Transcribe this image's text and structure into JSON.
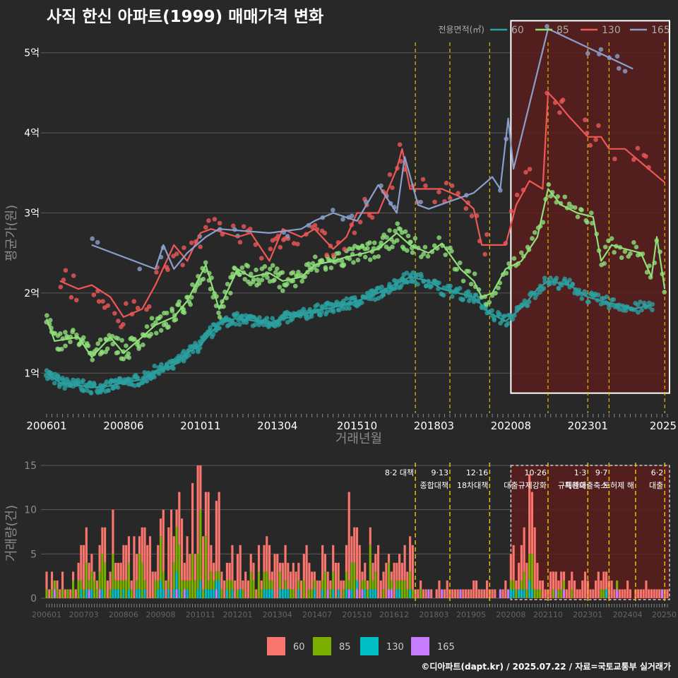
{
  "title": "사직 한신 아파트(1999) 매매가격 변화",
  "footer": "©디아파트(dapt.kr) / 2025.07.22 / 자료=국토교통부 실거래가",
  "colors": {
    "background": "#282828",
    "grid": "#5a5a5a",
    "policy_line": "#e8c000",
    "highlight_fill": "#5a1c1c",
    "series_60": "#2aa0a0",
    "series_85": "#8fe07a",
    "series_130": "#ef5757",
    "series_165": "#8aa0cc",
    "bar_60": "#f8766d",
    "bar_85": "#7cae00",
    "bar_130": "#00bfc4",
    "bar_165": "#c77cff"
  },
  "chart_data": [
    {
      "type": "line",
      "title": "사직 한신 아파트(1999) 매매가격 변화",
      "xlabel": "거래년월",
      "ylabel": "평균가(원)",
      "x_ticks": [
        "200601",
        "200806",
        "201011",
        "201304",
        "201510",
        "201803",
        "202008",
        "202301",
        "2025"
      ],
      "y_ticks": [
        "1억",
        "2억",
        "3억",
        "4억",
        "5억"
      ],
      "y_unit": "억원",
      "ylim": [
        0.5,
        5.5
      ],
      "xlim": [
        "2006-01",
        "2025-07"
      ],
      "legend_title": "전용면적(㎡)",
      "legend_position": "top-right",
      "series": [
        {
          "name": "60",
          "color_key": "series_60",
          "points": [
            [
              "2006-01",
              1.0
            ],
            [
              "2006-06",
              0.88
            ],
            [
              "2007-01",
              0.85
            ],
            [
              "2007-06",
              0.82
            ],
            [
              "2008-01",
              0.84
            ],
            [
              "2008-06",
              0.88
            ],
            [
              "2009-01",
              0.92
            ],
            [
              "2009-06",
              1.02
            ],
            [
              "2010-01",
              1.1
            ],
            [
              "2010-06",
              1.25
            ],
            [
              "2010-11",
              1.35
            ],
            [
              "2011-06",
              1.62
            ],
            [
              "2011-12",
              1.68
            ],
            [
              "2012-06",
              1.66
            ],
            [
              "2013-01",
              1.62
            ],
            [
              "2013-06",
              1.68
            ],
            [
              "2014-01",
              1.72
            ],
            [
              "2014-06",
              1.78
            ],
            [
              "2015-01",
              1.82
            ],
            [
              "2015-06",
              1.86
            ],
            [
              "2015-10",
              1.9
            ],
            [
              "2016-06",
              2.0
            ],
            [
              "2017-01",
              2.12
            ],
            [
              "2017-06",
              2.2
            ],
            [
              "2018-01",
              2.15
            ],
            [
              "2018-06",
              2.05
            ],
            [
              "2019-06",
              1.95
            ],
            [
              "2019-12",
              1.75
            ],
            [
              "2020-06",
              1.65
            ],
            [
              "2020-08",
              1.7
            ],
            [
              "2021-01",
              1.85
            ],
            [
              "2021-06",
              2.05
            ],
            [
              "2021-10",
              2.15
            ],
            [
              "2022-06",
              2.1
            ],
            [
              "2023-01",
              1.95
            ],
            [
              "2023-06",
              1.9
            ],
            [
              "2024-01",
              1.85
            ],
            [
              "2024-06",
              1.8
            ],
            [
              "2025-01",
              1.85
            ]
          ]
        },
        {
          "name": "85",
          "color_key": "series_85",
          "points": [
            [
              "2006-01",
              1.68
            ],
            [
              "2006-04",
              1.4
            ],
            [
              "2007-01",
              1.45
            ],
            [
              "2007-06",
              1.2
            ],
            [
              "2008-01",
              1.45
            ],
            [
              "2008-06",
              1.25
            ],
            [
              "2009-01",
              1.45
            ],
            [
              "2009-06",
              1.6
            ],
            [
              "2010-01",
              1.7
            ],
            [
              "2010-06",
              1.9
            ],
            [
              "2011-01",
              2.35
            ],
            [
              "2011-06",
              1.8
            ],
            [
              "2012-01",
              2.3
            ],
            [
              "2012-06",
              2.2
            ],
            [
              "2013-01",
              2.25
            ],
            [
              "2013-06",
              2.15
            ],
            [
              "2014-01",
              2.2
            ],
            [
              "2014-06",
              2.35
            ],
            [
              "2015-01",
              2.4
            ],
            [
              "2015-06",
              2.45
            ],
            [
              "2016-01",
              2.5
            ],
            [
              "2016-06",
              2.55
            ],
            [
              "2017-01",
              2.75
            ],
            [
              "2017-06",
              2.6
            ],
            [
              "2018-01",
              2.5
            ],
            [
              "2018-06",
              2.62
            ],
            [
              "2019-01",
              2.3
            ],
            [
              "2019-06",
              2.15
            ],
            [
              "2019-09",
              1.95
            ],
            [
              "2020-01",
              2.0
            ],
            [
              "2020-06",
              2.3
            ],
            [
              "2020-12",
              2.4
            ],
            [
              "2021-06",
              2.7
            ],
            [
              "2021-10",
              3.3
            ],
            [
              "2022-03",
              3.1
            ],
            [
              "2022-09",
              3.0
            ],
            [
              "2023-03",
              2.95
            ],
            [
              "2023-06",
              2.4
            ],
            [
              "2023-10",
              2.6
            ],
            [
              "2024-03",
              2.55
            ],
            [
              "2024-09",
              2.5
            ],
            [
              "2025-01",
              2.2
            ],
            [
              "2025-03",
              2.7
            ],
            [
              "2025-06",
              2.05
            ]
          ]
        },
        {
          "name": "130",
          "color_key": "series_130",
          "points": [
            [
              "2006-06",
              2.15
            ],
            [
              "2007-01",
              2.05
            ],
            [
              "2007-06",
              2.1
            ],
            [
              "2008-01",
              1.95
            ],
            [
              "2008-06",
              1.7
            ],
            [
              "2009-01",
              1.8
            ],
            [
              "2009-06",
              2.1
            ],
            [
              "2010-01",
              2.6
            ],
            [
              "2010-06",
              2.4
            ],
            [
              "2010-11",
              2.75
            ],
            [
              "2011-03",
              2.8
            ],
            [
              "2012-01",
              2.7
            ],
            [
              "2012-06",
              2.75
            ],
            [
              "2013-01",
              2.4
            ],
            [
              "2013-06",
              2.8
            ],
            [
              "2014-01",
              2.7
            ],
            [
              "2014-06",
              2.8
            ],
            [
              "2015-01",
              2.55
            ],
            [
              "2015-06",
              2.7
            ],
            [
              "2015-10",
              3.0
            ],
            [
              "2016-06",
              3.0
            ],
            [
              "2017-01",
              3.55
            ],
            [
              "2017-03",
              3.8
            ],
            [
              "2017-06",
              3.3
            ],
            [
              "2018-01",
              3.3
            ],
            [
              "2018-06",
              3.3
            ],
            [
              "2019-01",
              3.2
            ],
            [
              "2019-06",
              3.05
            ],
            [
              "2019-09",
              2.6
            ],
            [
              "2020-06",
              2.6
            ],
            [
              "2020-10",
              3.1
            ],
            [
              "2021-03",
              3.4
            ],
            [
              "2021-08",
              3.3
            ],
            [
              "2021-10",
              4.5
            ],
            [
              "2022-01",
              4.4
            ],
            [
              "2022-06",
              4.2
            ],
            [
              "2023-01",
              3.95
            ],
            [
              "2023-06",
              3.95
            ],
            [
              "2023-09",
              3.8
            ],
            [
              "2024-03",
              3.8
            ],
            [
              "2025-06",
              3.38
            ]
          ]
        },
        {
          "name": "165",
          "color_key": "series_165",
          "points": [
            [
              "2007-06",
              2.6
            ],
            [
              "2009-06",
              2.3
            ],
            [
              "2009-09",
              2.6
            ],
            [
              "2010-01",
              2.3
            ],
            [
              "2010-06",
              2.5
            ],
            [
              "2011-01",
              2.7
            ],
            [
              "2011-06",
              2.8
            ],
            [
              "2013-01",
              2.75
            ],
            [
              "2014-01",
              2.8
            ],
            [
              "2014-06",
              2.9
            ],
            [
              "2015-01",
              3.0
            ],
            [
              "2015-10",
              2.9
            ],
            [
              "2016-06",
              3.35
            ],
            [
              "2017-01",
              3.0
            ],
            [
              "2017-04",
              3.7
            ],
            [
              "2017-09",
              3.1
            ],
            [
              "2018-01",
              3.05
            ],
            [
              "2019-06",
              3.25
            ],
            [
              "2020-01",
              3.45
            ],
            [
              "2020-04",
              3.3
            ],
            [
              "2020-07",
              4.18
            ],
            [
              "2020-09",
              3.55
            ],
            [
              "2021-10",
              5.3
            ],
            [
              "2024-06",
              4.8
            ]
          ]
        }
      ],
      "policy_markers": [
        "2017-08",
        "2018-09",
        "2019-12",
        "2021-10",
        "2023-01",
        "2023-09",
        "2025-06"
      ],
      "highlight_box": {
        "from": "2020-08",
        "to": "2025-07",
        "y_from": 0.75,
        "y_to": 5.4
      }
    },
    {
      "type": "bar",
      "stacked": true,
      "ylabel": "거래량(건)",
      "y_ticks": [
        "0",
        "5",
        "10",
        "15"
      ],
      "ylim": [
        0,
        15
      ],
      "x_ticks": [
        "200601",
        "200703",
        "200806",
        "200908",
        "201011",
        "201201",
        "201304",
        "201407",
        "201510",
        "201612",
        "201803",
        "201905",
        "202008",
        "202110",
        "202301",
        "202404",
        "20250"
      ],
      "legend": [
        "60",
        "85",
        "130",
        "165"
      ],
      "legend_position": "bottom",
      "policy_markers": [
        {
          "date": "2017-08",
          "date_label": "8·2 대책",
          "label": ""
        },
        {
          "date": "2018-09",
          "date_label": "9·13",
          "label": "종합대책"
        },
        {
          "date": "2019-12",
          "date_label": "12·16",
          "label": "18차대책"
        },
        {
          "date": "2021-10",
          "date_label": "10·26",
          "label": "대출규제강화"
        },
        {
          "date": "2023-01",
          "date_label": "1·3",
          "label": "규제완화"
        },
        {
          "date": "2023-09",
          "date_label": "9·7",
          "label": "특례대출축소"
        },
        {
          "date": "2024-07",
          "date_label": "",
          "label": "토허제 해"
        },
        {
          "date": "2025-06",
          "date_label": "6·2",
          "label": "대출"
        }
      ],
      "highlight_box": {
        "from": "2020-08",
        "to": "2025-07"
      },
      "monthly_total_profile": [
        {
          "from": "2006-01",
          "to": "2006-12",
          "level": 2
        },
        {
          "from": "2007-01",
          "to": "2007-12",
          "level": 5
        },
        {
          "from": "2008-01",
          "to": "2009-12",
          "level": 6
        },
        {
          "from": "2010-01",
          "to": "2011-06",
          "level": 9
        },
        {
          "from": "2011-07",
          "to": "2012-12",
          "level": 4
        },
        {
          "from": "2013-01",
          "to": "2014-06",
          "level": 4
        },
        {
          "from": "2014-07",
          "to": "2016-06",
          "level": 5
        },
        {
          "from": "2016-07",
          "to": "2017-07",
          "level": 4
        },
        {
          "from": "2017-08",
          "to": "2020-07",
          "level": 1
        },
        {
          "from": "2020-08",
          "to": "2021-06",
          "level": 5
        },
        {
          "from": "2021-07",
          "to": "2023-12",
          "level": 2
        },
        {
          "from": "2024-01",
          "to": "2025-07",
          "level": 1
        }
      ],
      "notable_peaks": [
        [
          "2010-11",
          15
        ],
        [
          "2010-08",
          13
        ],
        [
          "2021-03",
          14
        ],
        [
          "2021-04",
          12
        ],
        [
          "2015-07",
          12
        ]
      ]
    }
  ]
}
